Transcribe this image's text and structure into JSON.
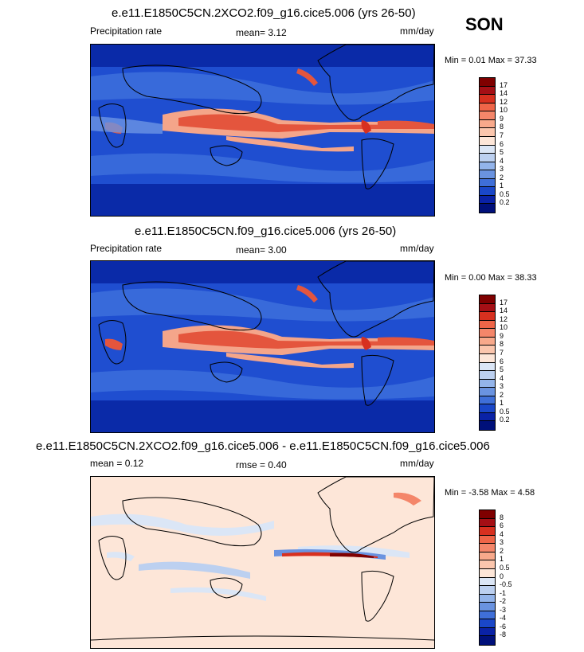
{
  "season": "SON",
  "panels": [
    {
      "title": "e.e11.E1850C5CN.2XCO2.f09_g16.cice5.006 (yrs 26-50)",
      "left_label": "Precipitation rate",
      "mid_label": "mean=   3.12",
      "units": "mm/day",
      "minmax": "Min =   0.01 Max =  37.33",
      "levels": [
        "17",
        "14",
        "12",
        "10",
        "9",
        "8",
        "7",
        "6",
        "5",
        "4",
        "3",
        "2",
        "1",
        "0.5",
        "0.2"
      ],
      "colors": [
        "#7f0000",
        "#a50f15",
        "#d7301f",
        "#ef6548",
        "#f4866a",
        "#f8a98b",
        "#fbc6ad",
        "#fde6d8",
        "#dbe6f6",
        "#bcd0f0",
        "#93b4ea",
        "#6a93e0",
        "#3f6fd8",
        "#1a47c8",
        "#0a22a6",
        "#00107a"
      ]
    },
    {
      "title": "e.e11.E1850C5CN.f09_g16.cice5.006 (yrs 26-50)",
      "left_label": "Precipitation rate",
      "mid_label": "mean=   3.00",
      "units": "mm/day",
      "minmax": "Min =   0.00 Max =  38.33",
      "levels": [
        "17",
        "14",
        "12",
        "10",
        "9",
        "8",
        "7",
        "6",
        "5",
        "4",
        "3",
        "2",
        "1",
        "0.5",
        "0.2"
      ],
      "colors": [
        "#7f0000",
        "#a50f15",
        "#d7301f",
        "#ef6548",
        "#f4866a",
        "#f8a98b",
        "#fbc6ad",
        "#fde6d8",
        "#dbe6f6",
        "#bcd0f0",
        "#93b4ea",
        "#6a93e0",
        "#3f6fd8",
        "#1a47c8",
        "#0a22a6",
        "#00107a"
      ]
    },
    {
      "title": "e.e11.E1850C5CN.2XCO2.f09_g16.cice5.006 - e.e11.E1850C5CN.f09_g16.cice5.006",
      "left_label": "mean =   0.12",
      "mid_label": "rmse =   0.40",
      "units": "mm/day",
      "minmax": "Min =  -3.58 Max =   4.58",
      "levels": [
        "8",
        "6",
        "4",
        "3",
        "2",
        "1",
        "0.5",
        "0",
        "-0.5",
        "-1",
        "-2",
        "-3",
        "-4",
        "-6",
        "-8"
      ],
      "colors": [
        "#7f0000",
        "#a50f15",
        "#d7301f",
        "#ef6548",
        "#f4866a",
        "#f8a98b",
        "#fbc6ad",
        "#fde6d8",
        "#dbe6f6",
        "#bcd0f0",
        "#93b4ea",
        "#6a93e0",
        "#3f6fd8",
        "#1a47c8",
        "#0a22a6",
        "#00107a"
      ]
    }
  ]
}
